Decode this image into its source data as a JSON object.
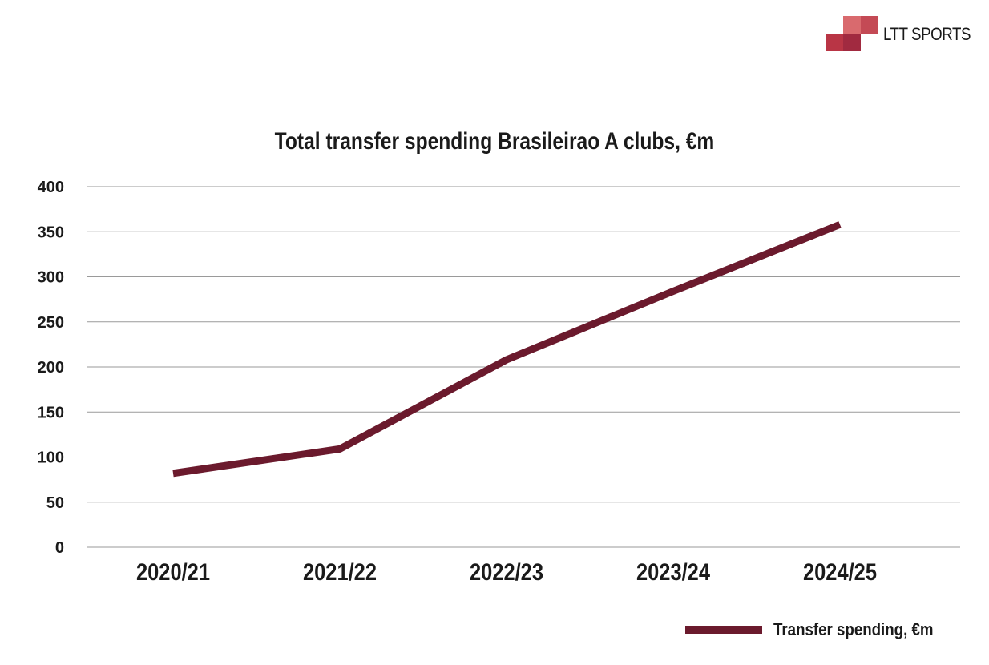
{
  "brand": {
    "name": "LTT SPORTS",
    "colors": [
      "#d96a6e",
      "#c44a55",
      "#b93545",
      "#a12a40"
    ]
  },
  "chart_data": {
    "type": "line",
    "title": "Total transfer spending Brasileirao A clubs, €m",
    "xlabel": "",
    "ylabel": "",
    "categories": [
      "2020/21",
      "2021/22",
      "2022/23",
      "2023/24",
      "2024/25"
    ],
    "series": [
      {
        "name": "Transfer spending, €m",
        "values": [
          82,
          109,
          208,
          284,
          358
        ],
        "color": "#6b1a2d"
      }
    ],
    "ylim": [
      0,
      400
    ],
    "yticks": [
      0,
      50,
      100,
      150,
      200,
      250,
      300,
      350,
      400
    ],
    "grid": true,
    "legend": "bottom-right"
  }
}
